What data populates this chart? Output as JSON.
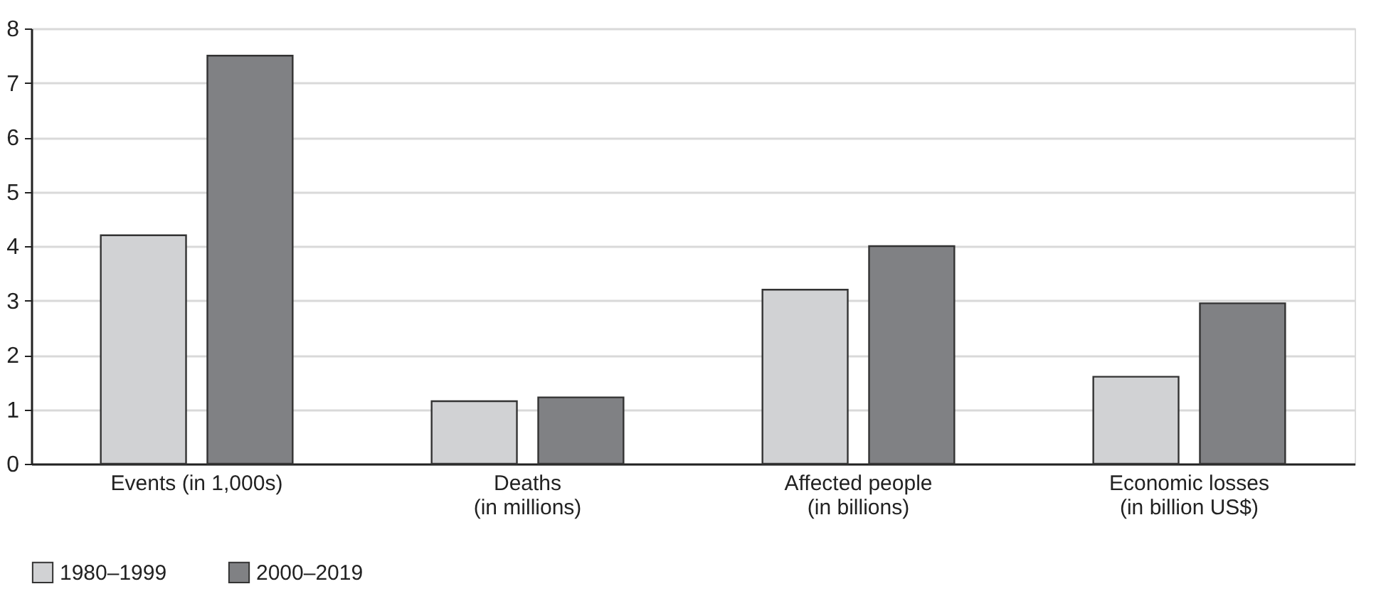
{
  "chart_data": {
    "type": "bar",
    "categories": [
      "Events (in 1,000s)",
      "Deaths\n(in millions)",
      "Affected people\n(in billions)",
      "Economic losses\n(in billion US$)"
    ],
    "series": [
      {
        "name": "1980–1999",
        "color": "#d1d2d4",
        "values": [
          4.2,
          1.15,
          3.2,
          1.6
        ]
      },
      {
        "name": "2000–2019",
        "color": "#808184",
        "values": [
          7.5,
          1.22,
          4.0,
          2.95
        ]
      }
    ],
    "ylim": [
      0,
      8
    ],
    "yticks": [
      0,
      1,
      2,
      3,
      4,
      5,
      6,
      7,
      8
    ],
    "grid": "y",
    "legend": "bottom"
  }
}
